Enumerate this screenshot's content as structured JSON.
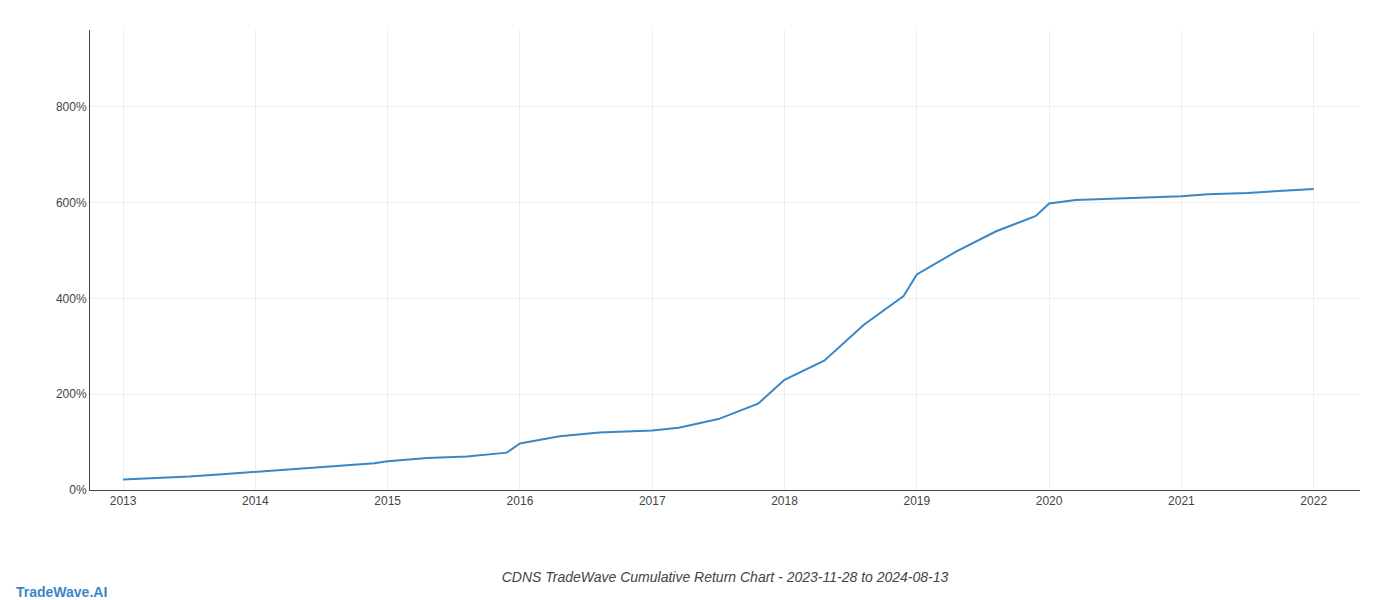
{
  "chart_data": {
    "type": "line",
    "title": "CDNS TradeWave Cumulative Return Chart - 2023-11-28 to 2024-08-13",
    "annotations": [
      "TradeWave.AI"
    ],
    "color": "#3a87c8",
    "grid": true,
    "x": [
      2013.0,
      2013.2,
      2013.5,
      2013.75,
      2014.0,
      2014.3,
      2014.6,
      2014.9,
      2015.0,
      2015.3,
      2015.6,
      2015.9,
      2016.0,
      2016.3,
      2016.6,
      2016.9,
      2017.0,
      2017.2,
      2017.5,
      2017.8,
      2018.0,
      2018.3,
      2018.6,
      2018.9,
      2019.0,
      2019.3,
      2019.6,
      2019.9,
      2020.0,
      2020.2,
      2020.5,
      2020.8,
      2021.0,
      2021.2,
      2021.5,
      2021.8,
      2022.0
    ],
    "values": [
      22,
      24,
      28,
      33,
      38,
      43,
      50,
      56,
      60,
      67,
      70,
      78,
      97,
      112,
      120,
      124,
      124,
      130,
      148,
      180,
      230,
      270,
      345,
      405,
      450,
      498,
      540,
      572,
      598,
      605,
      608,
      610,
      613,
      617,
      620,
      625,
      628
    ],
    "xlim": [
      2012.75,
      2022.35
    ],
    "xticks": [
      2013,
      2014,
      2015,
      2016,
      2017,
      2018,
      2019,
      2020,
      2021,
      2022
    ],
    "ylim": [
      0,
      960
    ],
    "yticks": [
      {
        "value": 0,
        "label": "0%"
      },
      {
        "value": 200,
        "label": "200%"
      },
      {
        "value": 400,
        "label": "400%"
      },
      {
        "value": 600,
        "label": "600%"
      },
      {
        "value": 800,
        "label": "800%"
      }
    ]
  }
}
